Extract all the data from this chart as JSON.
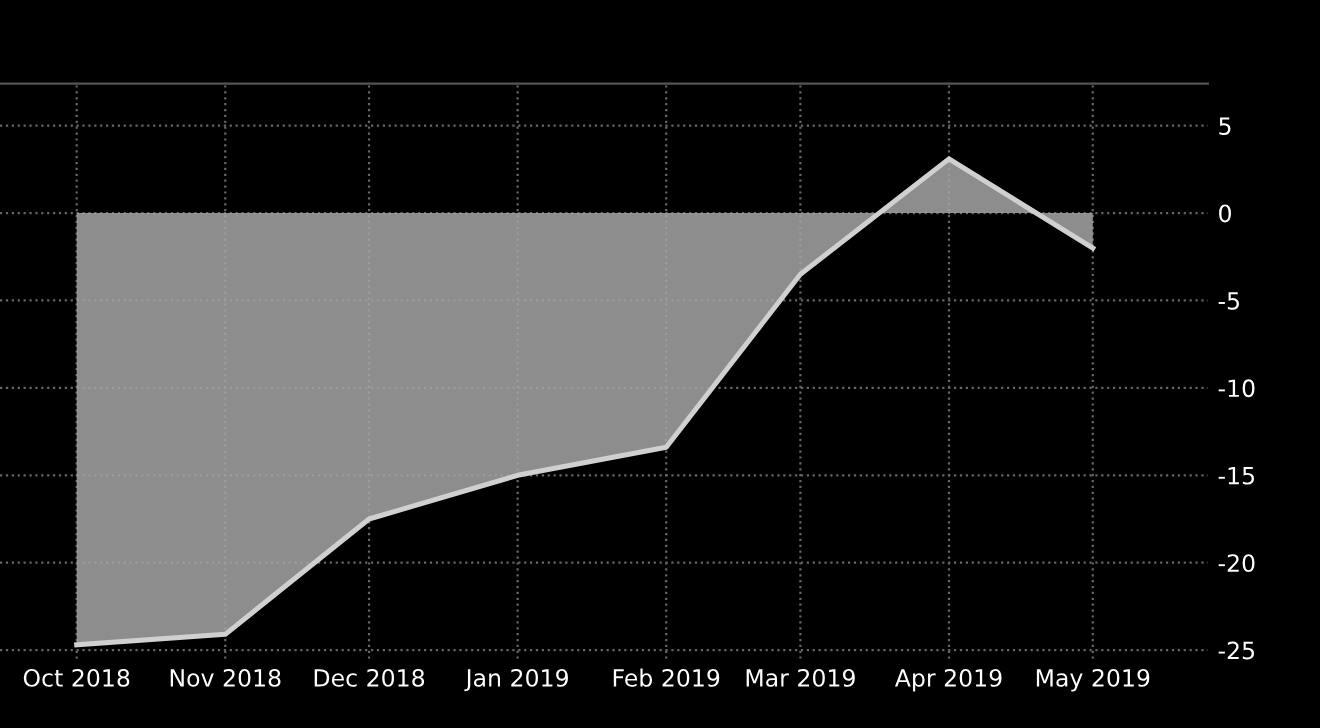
{
  "chart_data": {
    "type": "area",
    "x": [
      "2018-10-01",
      "2018-11-01",
      "2018-12-01",
      "2019-01-01",
      "2019-02-01",
      "2019-03-01",
      "2019-04-01",
      "2019-05-01"
    ],
    "series": [
      {
        "color": "#a6a6a6",
        "values": [
          -24.7,
          -24.1,
          -17.5,
          -15.0,
          -13.4,
          -3.5,
          3.1,
          -2.0
        ]
      }
    ],
    "xlim": [
      "2018-09-15",
      "2019-05-25"
    ],
    "xticks": [
      {
        "value": "2018-10-01",
        "label": "Oct 2018"
      },
      {
        "value": "2018-11-01",
        "label": "Nov 2018"
      },
      {
        "value": "2018-12-01",
        "label": "Dec 2018"
      },
      {
        "value": "2019-01-01",
        "label": "Jan 2019"
      },
      {
        "value": "2019-02-01",
        "label": "Feb 2019"
      },
      {
        "value": "2019-03-01",
        "label": "Mar 2019"
      },
      {
        "value": "2019-04-01",
        "label": "Apr 2019"
      },
      {
        "value": "2019-05-01",
        "label": "May 2019"
      }
    ],
    "ylim": [
      -25.5,
      7.4
    ],
    "yticks": [
      -25,
      -20,
      -15,
      -10,
      -5,
      0,
      5
    ],
    "grid": true,
    "line_style": "solid",
    "marker": "none"
  }
}
